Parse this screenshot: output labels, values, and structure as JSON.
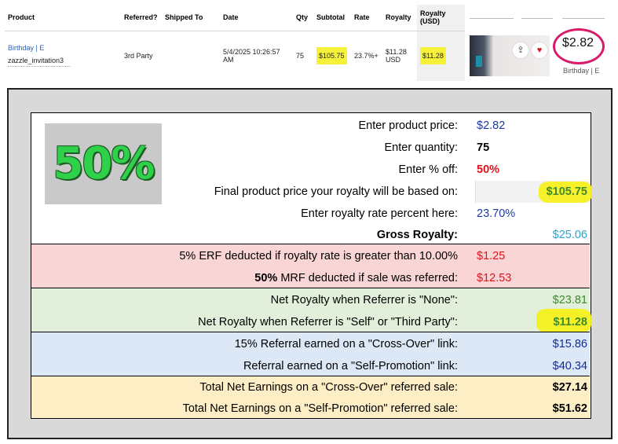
{
  "order": {
    "headers": {
      "product": "Product",
      "referred": "Referred?",
      "shipped_to": "Shipped To",
      "date": "Date",
      "qty": "Qty",
      "subtotal": "Subtotal",
      "rate": "Rate",
      "royalty": "Royalty",
      "royalty_usd": "Royalty (USD)"
    },
    "row": {
      "product_name": "Birthday | E",
      "product_sku": "zazzle_invitation3",
      "referred": "3rd Party",
      "date": "5/4/2025 10:26:57 AM",
      "qty": "75",
      "subtotal": "$105.75",
      "rate": "23.7%+",
      "royalty": "$11.28 USD",
      "royalty_usd": "$11.28"
    }
  },
  "product_card": {
    "price": "$2.82",
    "caption": "Birthday | E"
  },
  "calculator": {
    "badge": "50%",
    "rows": {
      "price": {
        "label": "Enter product price:",
        "value": "$2.82"
      },
      "quantity": {
        "label": "Enter quantity:",
        "value": "75"
      },
      "percent_off": {
        "label": "Enter % off:",
        "value": "50%"
      },
      "final_price": {
        "label": "Final product price your royalty will be based on:",
        "value": "$105.75"
      },
      "royalty_rate": {
        "label": "Enter royalty rate percent here:",
        "value": "23.70%"
      },
      "gross": {
        "label": "Gross Royalty:",
        "value": "$25.06"
      },
      "erf": {
        "label": "5% ERF deducted if royalty rate is greater than 10.00%",
        "value": "$1.25"
      },
      "mrf": {
        "label_bold": "50%",
        "label_rest": " MRF deducted if sale was referred:",
        "value": "$12.53"
      },
      "net_none": {
        "label": "Net Royalty when Referrer is \"None\":",
        "value": "$23.81"
      },
      "net_self": {
        "label": "Net Royalty when Referrer is \"Self\" or \"Third Party\":",
        "value": "$11.28"
      },
      "cross_over": {
        "label": "15% Referral earned on a \"Cross-Over\" link:",
        "value": "$15.86"
      },
      "self_promo": {
        "label": "Referral earned on a \"Self-Promotion\" link:",
        "value": "$40.34"
      },
      "total_cross": {
        "label": "Total Net Earnings on a \"Cross-Over\" referred sale:",
        "value": "$27.14"
      },
      "total_self": {
        "label": "Total Net Earnings on a \"Self-Promotion\" referred sale:",
        "value": "$51.62"
      }
    }
  }
}
